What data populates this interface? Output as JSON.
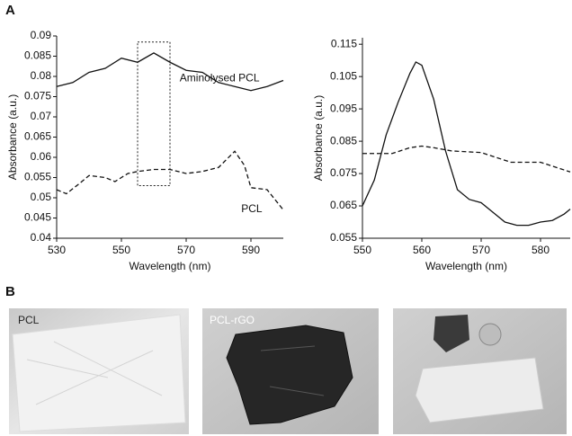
{
  "panel_labels": [
    "A",
    "B"
  ],
  "photos": [
    {
      "label": "PCL"
    },
    {
      "label": "PCL-rGO"
    }
  ],
  "chart_data": [
    {
      "type": "line",
      "xlabel": "Wavelength (nm)",
      "ylabel": "Absorbance (a.u.)",
      "xlim": [
        530,
        600
      ],
      "xticks": [
        530,
        550,
        570,
        590
      ],
      "ylim": [
        0.04,
        0.09
      ],
      "yticks": [
        0.04,
        0.045,
        0.05,
        0.055,
        0.06,
        0.065,
        0.07,
        0.075,
        0.08,
        0.085,
        0.09
      ],
      "highlight": {
        "xlim": [
          555,
          565
        ],
        "ylim": [
          0.053,
          0.0885
        ]
      },
      "series": [
        {
          "name": "Aminolysed PCL",
          "color": "#111111",
          "line_style": "solid",
          "x": [
            530,
            535,
            540,
            545,
            550,
            555,
            560,
            565,
            570,
            575,
            580,
            585,
            590,
            595,
            600
          ],
          "values": [
            0.0775,
            0.0785,
            0.081,
            0.082,
            0.0845,
            0.0835,
            0.0858,
            0.0835,
            0.0815,
            0.081,
            0.0785,
            0.0775,
            0.0765,
            0.0775,
            0.079
          ]
        },
        {
          "name": "PCL",
          "color": "#111111",
          "line_style": "dashed",
          "x": [
            530,
            533,
            537,
            540,
            545,
            548,
            552,
            555,
            560,
            565,
            570,
            575,
            580,
            585,
            588,
            590,
            595,
            600
          ],
          "values": [
            0.052,
            0.051,
            0.0535,
            0.0555,
            0.055,
            0.054,
            0.056,
            0.0565,
            0.057,
            0.057,
            0.056,
            0.0565,
            0.0575,
            0.0615,
            0.058,
            0.0525,
            0.052,
            0.047
          ]
        }
      ]
    },
    {
      "type": "line",
      "xlabel": "Wavelength (nm)",
      "ylabel": "Absorbance (a.u.)",
      "xlim": [
        550,
        585
      ],
      "xticks": [
        550,
        560,
        570,
        580
      ],
      "ylim": [
        0.055,
        0.117
      ],
      "yticks": [
        0.055,
        0.065,
        0.075,
        0.085,
        0.095,
        0.105,
        0.115
      ],
      "series": [
        {
          "color": "#111111",
          "line_style": "solid",
          "x": [
            550,
            552,
            554,
            556,
            558,
            559,
            560,
            562,
            564,
            566,
            568,
            570,
            572,
            574,
            576,
            578,
            580,
            582,
            584,
            585
          ],
          "values": [
            0.065,
            0.073,
            0.087,
            0.097,
            0.106,
            0.1095,
            0.1085,
            0.098,
            0.082,
            0.07,
            0.067,
            0.066,
            0.063,
            0.06,
            0.059,
            0.059,
            0.06,
            0.0605,
            0.0625,
            0.064
          ]
        },
        {
          "color": "#111111",
          "line_style": "dashed",
          "x": [
            550,
            555,
            558,
            560,
            562,
            565,
            570,
            575,
            580,
            585
          ],
          "values": [
            0.0812,
            0.0812,
            0.083,
            0.0835,
            0.083,
            0.082,
            0.0815,
            0.0785,
            0.0785,
            0.0755
          ]
        }
      ]
    }
  ]
}
